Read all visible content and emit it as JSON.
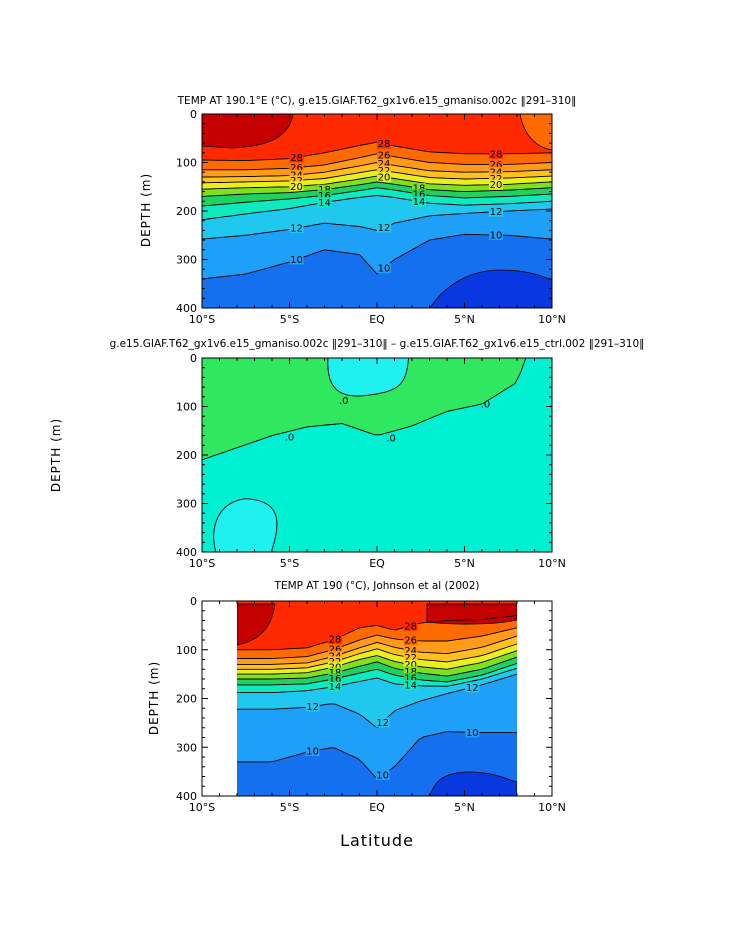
{
  "figure": {
    "xlabel": "Latitude",
    "colors": {
      "t_ge28": "#e60000",
      "t_26_28": "#ff2a00",
      "t_24_26": "#ff6a00",
      "t_22_24": "#ff9a1a",
      "t_20_22": "#ffc020",
      "t_18_20": "#e8ee20",
      "t_16_18": "#80e020",
      "t_14_16": "#20d060",
      "t_12_14": "#10e8c0",
      "t_10_12": "#20c8f0",
      "t_8_10": "#1ea0f8",
      "t_lt8": "#1570f0",
      "t_deep": "#0a38e0",
      "t_hot": "#c40000",
      "diff_pos": "#2fe860",
      "diff_zero": "#00f0d2",
      "diff_neg": "#20f0f0"
    }
  },
  "chart_data": [
    {
      "type": "heatmap",
      "title": "TEMP AT 190.1°E (°C), g.e15.GIAF.T62_gx1v6.e15_gmaniso.002c ‖291–310‖",
      "xlabel": "",
      "ylabel": "DEPTH (m)",
      "xlim": [
        -10,
        10
      ],
      "ylim": [
        400,
        0
      ],
      "xticks": [
        "10°S",
        "5°S",
        "EQ",
        "5°N",
        "10°N"
      ],
      "yticks": [
        0,
        100,
        200,
        300,
        400
      ],
      "contour_levels": [
        10,
        12,
        14,
        16,
        18,
        20,
        22,
        24,
        26,
        28
      ],
      "x": [
        -10,
        -7.5,
        -5,
        -3,
        -1,
        0,
        1,
        3,
        5,
        7.5,
        10
      ],
      "isotherm_depths": [
        {
          "level": 28,
          "depths": [
            95,
            96,
            92,
            80,
            65,
            58,
            66,
            78,
            82,
            82,
            80
          ],
          "labels": [
            "28",
            "28",
            "28"
          ]
        },
        {
          "level": 26,
          "depths": [
            115,
            115,
            112,
            105,
            90,
            82,
            88,
            100,
            104,
            104,
            100
          ],
          "labels": [
            "26",
            "26",
            "26"
          ]
        },
        {
          "level": 24,
          "depths": [
            130,
            129,
            127,
            120,
            107,
            100,
            106,
            117,
            120,
            119,
            115
          ],
          "labels": [
            "24",
            "24",
            "24"
          ]
        },
        {
          "level": 22,
          "depths": [
            142,
            140,
            138,
            133,
            121,
            115,
            120,
            131,
            134,
            132,
            128
          ],
          "labels": [
            "22",
            "22",
            "22"
          ]
        },
        {
          "level": 20,
          "depths": [
            155,
            152,
            150,
            145,
            134,
            128,
            133,
            144,
            147,
            145,
            140
          ],
          "labels": [
            "20",
            "20",
            "20"
          ]
        },
        {
          "level": 18,
          "depths": [
            170,
            165,
            162,
            156,
            146,
            140,
            145,
            156,
            160,
            157,
            152
          ],
          "labels": [
            "18",
            "18"
          ]
        },
        {
          "level": 16,
          "depths": [
            190,
            182,
            175,
            168,
            158,
            152,
            157,
            168,
            173,
            170,
            165
          ],
          "labels": [
            "16",
            "16"
          ]
        },
        {
          "level": 14,
          "depths": [
            218,
            206,
            195,
            182,
            172,
            168,
            172,
            184,
            188,
            185,
            180
          ],
          "labels": [
            "14",
            "14"
          ]
        },
        {
          "level": 12,
          "depths": [
            258,
            250,
            238,
            225,
            232,
            240,
            225,
            210,
            205,
            200,
            196
          ],
          "labels": [
            "12",
            "12",
            "12"
          ]
        },
        {
          "level": 10,
          "depths": [
            340,
            330,
            305,
            280,
            290,
            330,
            300,
            260,
            248,
            250,
            258
          ],
          "labels": [
            "10",
            "10",
            "10"
          ]
        }
      ]
    },
    {
      "type": "heatmap",
      "title": "g.e15.GIAF.T62_gx1v6.e15_gmaniso.002c ‖291–310‖ – g.e15.GIAF.T62_gx1v6.e15_ctrl.002 ‖291–310‖",
      "xlabel": "",
      "ylabel": "DEPTH (m)",
      "xlim": [
        -10,
        10
      ],
      "ylim": [
        400,
        0
      ],
      "xticks": [
        "10°S",
        "5°S",
        "EQ",
        "5°N",
        "10°N"
      ],
      "yticks": [
        0,
        100,
        200,
        300,
        400
      ],
      "contour_levels": [
        0
      ],
      "contour_labels": [
        ".0",
        ".0",
        ".0",
        ".0"
      ],
      "zero_line": {
        "x": [
          -10,
          -8,
          -6,
          -4,
          -2,
          0,
          2,
          4,
          6,
          8,
          8.5
        ],
        "depth": [
          210,
          185,
          160,
          142,
          135,
          160,
          140,
          110,
          95,
          50,
          0
        ]
      },
      "positive_region_extent_lat": [
        -10,
        8.5
      ],
      "patches": [
        {
          "sign": "negative",
          "lat_range": [
            -2.8,
            1.8
          ],
          "depth_range": [
            0,
            85
          ]
        },
        {
          "sign": "negative",
          "lat_range": [
            -10,
            -5.7
          ],
          "depth_range": [
            290,
            400
          ]
        }
      ]
    },
    {
      "type": "heatmap",
      "title": "TEMP AT 190 (°C), Johnson et al (2002)",
      "xlabel": "Latitude",
      "ylabel": "DEPTH (m)",
      "xlim": [
        -10,
        10
      ],
      "ylim": [
        400,
        0
      ],
      "xticks": [
        "10°S",
        "5°S",
        "EQ",
        "5°N",
        "10°N"
      ],
      "yticks": [
        0,
        100,
        200,
        300,
        400
      ],
      "data_lat_range": [
        -8,
        8
      ],
      "contour_levels": [
        10,
        12,
        14,
        16,
        18,
        20,
        22,
        24,
        26,
        28
      ],
      "x": [
        -8,
        -6,
        -4,
        -2.5,
        -1,
        0,
        1,
        2.5,
        4,
        6,
        8
      ],
      "isotherm_depths": [
        {
          "level": 28,
          "depths": [
            100,
            100,
            96,
            80,
            55,
            50,
            60,
            45,
            40,
            38,
            30
          ],
          "labels": [
            "28",
            "28"
          ]
        },
        {
          "level": 26,
          "depths": [
            118,
            118,
            114,
            100,
            80,
            70,
            78,
            82,
            82,
            72,
            55
          ],
          "labels": [
            "26",
            "26"
          ]
        },
        {
          "level": 24,
          "depths": [
            130,
            130,
            127,
            114,
            96,
            85,
            95,
            105,
            108,
            95,
            72
          ],
          "labels": [
            "24",
            "24"
          ]
        },
        {
          "level": 22,
          "depths": [
            140,
            140,
            137,
            125,
            108,
            98,
            110,
            120,
            125,
            112,
            88
          ],
          "labels": [
            "22",
            "22"
          ]
        },
        {
          "level": 20,
          "depths": [
            150,
            150,
            147,
            136,
            120,
            112,
            124,
            135,
            140,
            126,
            102
          ],
          "labels": [
            "20",
            "20"
          ]
        },
        {
          "level": 18,
          "depths": [
            160,
            160,
            158,
            148,
            134,
            125,
            138,
            148,
            154,
            140,
            115
          ],
          "labels": [
            "18",
            "18"
          ]
        },
        {
          "level": 16,
          "depths": [
            172,
            172,
            170,
            160,
            148,
            140,
            152,
            162,
            166,
            152,
            128
          ],
          "labels": [
            "16",
            "16"
          ]
        },
        {
          "level": 14,
          "depths": [
            188,
            188,
            184,
            176,
            165,
            158,
            170,
            174,
            175,
            160,
            138
          ],
          "labels": [
            "14",
            "14"
          ]
        },
        {
          "level": 12,
          "depths": [
            222,
            222,
            218,
            210,
            232,
            260,
            225,
            205,
            190,
            172,
            150
          ],
          "labels": [
            "12",
            "12",
            "12"
          ]
        },
        {
          "level": 10,
          "depths": [
            330,
            330,
            310,
            300,
            325,
            365,
            340,
            280,
            268,
            270,
            270
          ],
          "labels": [
            "10",
            "10",
            "10"
          ]
        }
      ]
    }
  ]
}
